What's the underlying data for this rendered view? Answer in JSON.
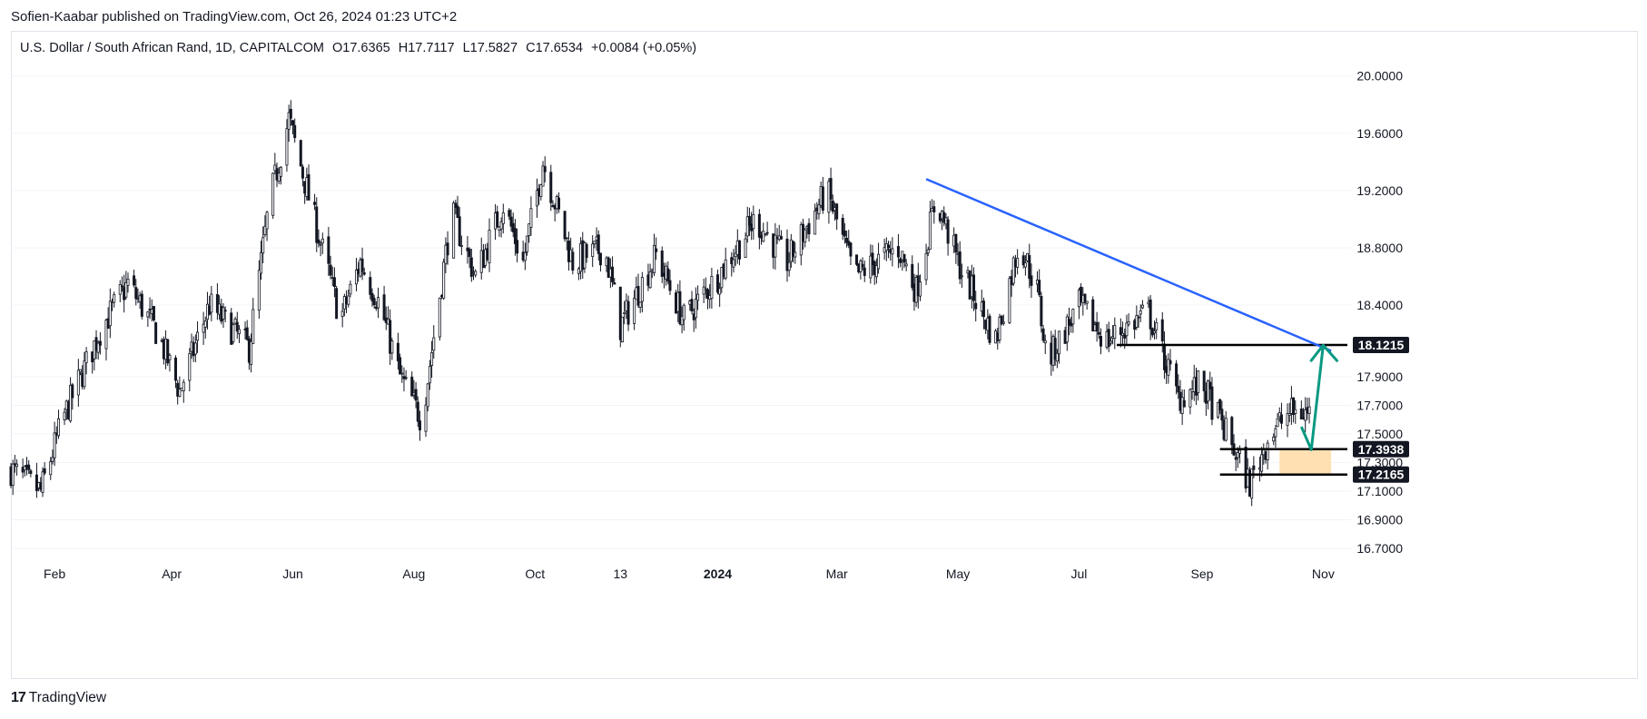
{
  "header": {
    "published_text": "Sofien-Kaabar published on TradingView.com, Oct 26, 2024 01:23 UTC+2"
  },
  "legend": {
    "symbol": "U.S. Dollar / South African Rand, 1D, CAPITALCOM",
    "open": "O17.6365",
    "high": "H17.7117",
    "low": "L17.5827",
    "close": "C17.6534",
    "change": "+0.0084 (+0.05%)"
  },
  "footer": {
    "logo_text": "17",
    "brand": "TradingView"
  },
  "colors": {
    "candle": "#131722",
    "trendline": "#2962ff",
    "arrow": "#089981",
    "zone": "#ffe0b2",
    "level": "#000000",
    "grid": "#f0f3fa",
    "label_bg": "#131722",
    "label_text": "#ffffff"
  },
  "chart_data": {
    "type": "candlestick",
    "title": "U.S. Dollar / South African Rand, 1D, CAPITALCOM",
    "ylim": [
      16.6,
      20.15
    ],
    "y_ticks": [
      "20.0000",
      "19.6000",
      "19.2000",
      "18.8000",
      "18.4000",
      "17.9000",
      "17.7000",
      "17.5000",
      "17.3000",
      "17.1000",
      "16.9000",
      "16.7000"
    ],
    "x_range": [
      "2023-01-10",
      "2024-11-15"
    ],
    "x_ticks": [
      {
        "label": "Feb",
        "date": "2023-02-01"
      },
      {
        "label": "Apr",
        "date": "2023-04-01"
      },
      {
        "label": "Jun",
        "date": "2023-06-01"
      },
      {
        "label": "Aug",
        "date": "2023-08-01"
      },
      {
        "label": "Oct",
        "date": "2023-10-01"
      },
      {
        "label": "13",
        "date": "2023-11-13"
      },
      {
        "label": "2024",
        "date": "2024-01-01"
      },
      {
        "label": "Mar",
        "date": "2024-03-01"
      },
      {
        "label": "May",
        "date": "2024-05-01"
      },
      {
        "label": "Jul",
        "date": "2024-07-01"
      },
      {
        "label": "Sep",
        "date": "2024-09-01"
      },
      {
        "label": "Nov",
        "date": "2024-11-01"
      }
    ],
    "close_path": [
      {
        "date": "2023-01-10",
        "close": 17.25
      },
      {
        "date": "2023-01-20",
        "close": 17.15
      },
      {
        "date": "2023-01-25",
        "close": 17.1
      },
      {
        "date": "2023-02-05",
        "close": 17.6
      },
      {
        "date": "2023-02-25",
        "close": 18.25
      },
      {
        "date": "2023-03-10",
        "close": 18.55
      },
      {
        "date": "2023-03-25",
        "close": 18.2
      },
      {
        "date": "2023-04-05",
        "close": 17.8
      },
      {
        "date": "2023-04-20",
        "close": 18.4
      },
      {
        "date": "2023-05-10",
        "close": 18.1
      },
      {
        "date": "2023-05-20",
        "close": 19.1
      },
      {
        "date": "2023-05-30",
        "close": 19.7
      },
      {
        "date": "2023-06-10",
        "close": 19.1
      },
      {
        "date": "2023-06-25",
        "close": 18.3
      },
      {
        "date": "2023-07-05",
        "close": 18.7
      },
      {
        "date": "2023-07-15",
        "close": 18.4
      },
      {
        "date": "2023-07-25",
        "close": 17.9
      },
      {
        "date": "2023-08-05",
        "close": 17.6
      },
      {
        "date": "2023-08-20",
        "close": 19.05
      },
      {
        "date": "2023-09-01",
        "close": 18.6
      },
      {
        "date": "2023-09-15",
        "close": 19.1
      },
      {
        "date": "2023-09-25",
        "close": 18.7
      },
      {
        "date": "2023-10-05",
        "close": 19.4
      },
      {
        "date": "2023-10-20",
        "close": 18.7
      },
      {
        "date": "2023-11-05",
        "close": 18.8
      },
      {
        "date": "2023-11-13",
        "close": 18.25
      },
      {
        "date": "2023-12-01",
        "close": 18.75
      },
      {
        "date": "2023-12-15",
        "close": 18.3
      },
      {
        "date": "2024-01-01",
        "close": 18.6
      },
      {
        "date": "2024-01-20",
        "close": 19.0
      },
      {
        "date": "2024-02-05",
        "close": 18.7
      },
      {
        "date": "2024-02-25",
        "close": 19.2
      },
      {
        "date": "2024-03-10",
        "close": 18.6
      },
      {
        "date": "2024-04-01",
        "close": 18.8
      },
      {
        "date": "2024-04-10",
        "close": 18.5
      },
      {
        "date": "2024-04-20",
        "close": 19.15
      },
      {
        "date": "2024-05-01",
        "close": 18.7
      },
      {
        "date": "2024-05-20",
        "close": 18.15
      },
      {
        "date": "2024-06-01",
        "close": 18.85
      },
      {
        "date": "2024-06-10",
        "close": 18.5
      },
      {
        "date": "2024-06-15",
        "close": 18.0
      },
      {
        "date": "2024-07-01",
        "close": 18.4
      },
      {
        "date": "2024-07-15",
        "close": 18.15
      },
      {
        "date": "2024-07-25",
        "close": 18.25
      },
      {
        "date": "2024-08-05",
        "close": 18.35
      },
      {
        "date": "2024-08-20",
        "close": 17.75
      },
      {
        "date": "2024-09-01",
        "close": 17.85
      },
      {
        "date": "2024-09-15",
        "close": 17.45
      },
      {
        "date": "2024-09-25",
        "close": 17.15
      },
      {
        "date": "2024-10-05",
        "close": 17.5
      },
      {
        "date": "2024-10-15",
        "close": 17.65
      },
      {
        "date": "2024-10-25",
        "close": 17.65
      }
    ],
    "trendline": {
      "from": {
        "date": "2024-04-15",
        "value": 19.28
      },
      "to": {
        "date": "2024-11-05",
        "value": 18.08
      }
    },
    "levels": [
      {
        "value": 18.1215,
        "label": "18.1215",
        "from_date": "2024-07-20"
      },
      {
        "value": 17.3938,
        "label": "17.3938",
        "from_date": "2024-09-10"
      },
      {
        "value": 17.2165,
        "label": "17.2165",
        "from_date": "2024-09-10"
      }
    ],
    "zone": {
      "from_date": "2024-10-10",
      "to_date": "2024-11-05",
      "low": 17.2165,
      "high": 17.3938
    },
    "arrow": {
      "start": {
        "date": "2024-10-26",
        "value": 17.39
      },
      "corner": {
        "date": "2024-10-21",
        "value": 17.55
      },
      "end": {
        "date": "2024-11-01",
        "value": 18.12
      }
    }
  }
}
